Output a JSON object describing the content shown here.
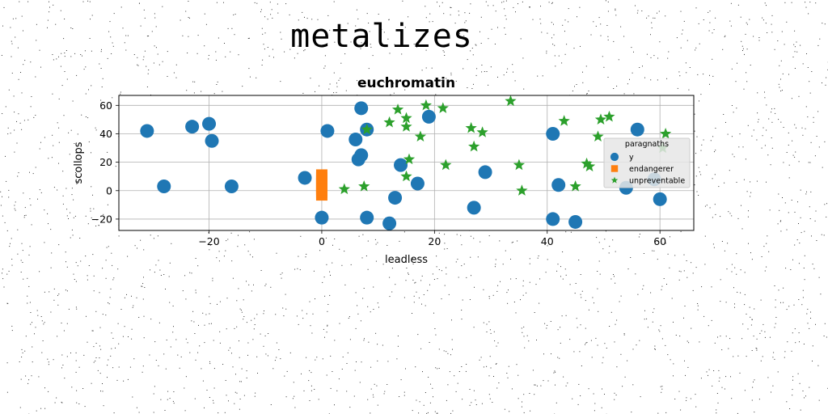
{
  "page": {
    "title": "metalizes"
  },
  "chart_data": {
    "type": "scatter",
    "title": "euchromatin",
    "xlabel": "leadless",
    "ylabel": "scollops",
    "xlim": [
      -36,
      66
    ],
    "ylim": [
      -28,
      67
    ],
    "xticks": [
      -20,
      0,
      20,
      40,
      60
    ],
    "yticks": [
      -20,
      0,
      20,
      40,
      60
    ],
    "grid": true,
    "legend": {
      "title": "paragnaths",
      "placement": "right"
    },
    "series": [
      {
        "name": "y",
        "marker": "circle",
        "color": "#1f77b4",
        "points": [
          [
            -31,
            42
          ],
          [
            -28,
            3
          ],
          [
            -23,
            45
          ],
          [
            -20,
            47
          ],
          [
            -19.5,
            35
          ],
          [
            -16,
            3
          ],
          [
            -3,
            9
          ],
          [
            0,
            -19
          ],
          [
            1,
            42
          ],
          [
            6,
            36
          ],
          [
            6.5,
            22
          ],
          [
            7,
            58
          ],
          [
            7,
            25
          ],
          [
            8,
            43
          ],
          [
            8,
            -19
          ],
          [
            12,
            -23
          ],
          [
            13,
            -5
          ],
          [
            14,
            18
          ],
          [
            17,
            5
          ],
          [
            19,
            52
          ],
          [
            27,
            -12
          ],
          [
            29,
            13
          ],
          [
            41,
            40
          ],
          [
            41,
            -20
          ],
          [
            42,
            4
          ],
          [
            45,
            -22
          ],
          [
            54,
            2
          ],
          [
            56,
            43
          ],
          [
            59,
            8
          ],
          [
            60,
            -6
          ]
        ]
      },
      {
        "name": "endangerer",
        "marker": "square",
        "color": "#ff7f0e",
        "points": [
          [
            0,
            -3
          ],
          [
            0,
            -1
          ],
          [
            0,
            1
          ],
          [
            0,
            3
          ],
          [
            0,
            5
          ],
          [
            0,
            7
          ],
          [
            0,
            9
          ],
          [
            0,
            11
          ]
        ]
      },
      {
        "name": "unpreventable",
        "marker": "star",
        "color": "#2ca02c",
        "points": [
          [
            4,
            1
          ],
          [
            7.5,
            3
          ],
          [
            8,
            43
          ],
          [
            12,
            48
          ],
          [
            13.5,
            57
          ],
          [
            15,
            45
          ],
          [
            15,
            51
          ],
          [
            15,
            10
          ],
          [
            15.5,
            22
          ],
          [
            17.5,
            38
          ],
          [
            18.5,
            60
          ],
          [
            21.5,
            58
          ],
          [
            22,
            18
          ],
          [
            26.5,
            44
          ],
          [
            27,
            31
          ],
          [
            28.5,
            41
          ],
          [
            33.5,
            63
          ],
          [
            35,
            18
          ],
          [
            35.5,
            0
          ],
          [
            43,
            49
          ],
          [
            45,
            3
          ],
          [
            47,
            19
          ],
          [
            47.5,
            17
          ],
          [
            49,
            38
          ],
          [
            49.5,
            50
          ],
          [
            51,
            52
          ],
          [
            60.5,
            30
          ],
          [
            61,
            40
          ]
        ]
      }
    ]
  }
}
